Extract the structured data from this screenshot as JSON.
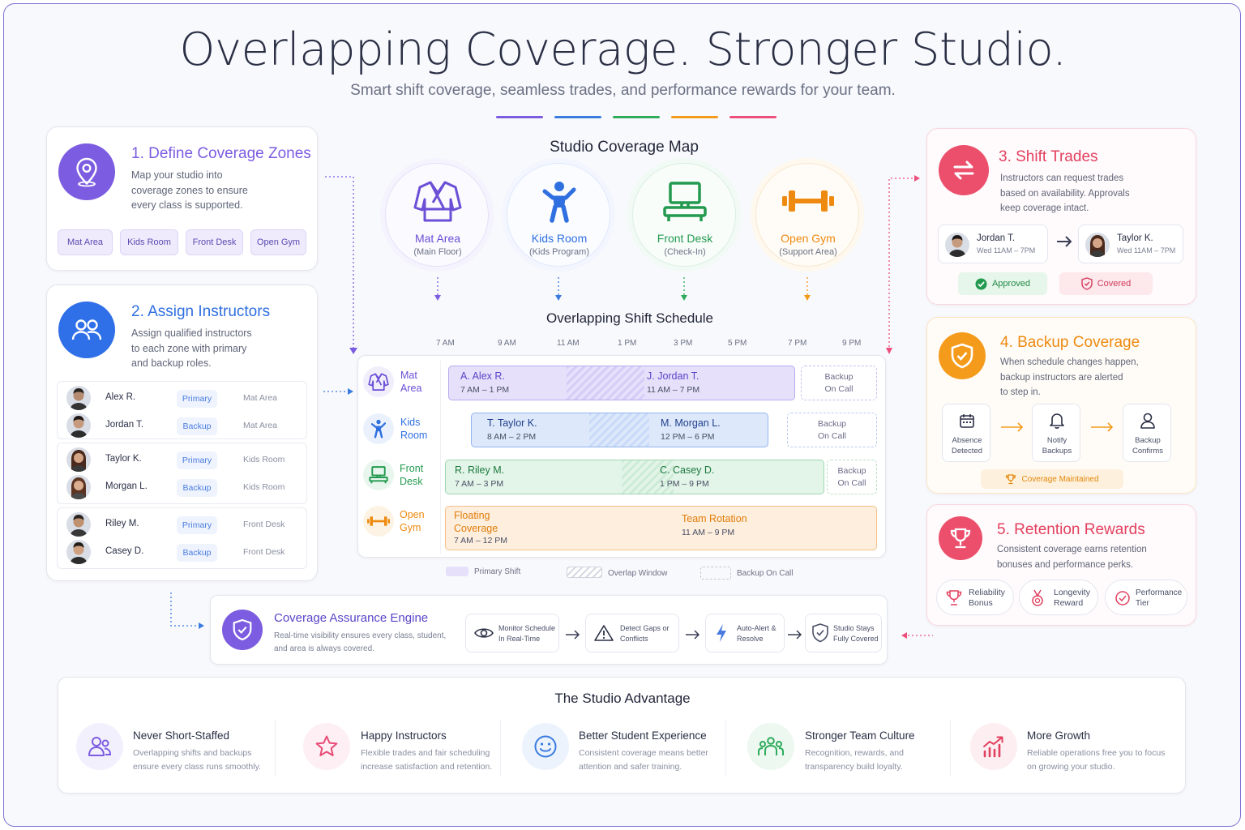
{
  "title": "Overlapping Coverage. Stronger Studio.",
  "subtitle": "Smart shift coverage, seamless trades, and performance rewards for your team.",
  "accent_colors": [
    "#7c5ce0",
    "#3a7be0",
    "#2eab5b",
    "#f59b1c",
    "#ec4f7c"
  ],
  "card1": {
    "heading": "1. Define Coverage Zones",
    "body": [
      "Map your studio into",
      "coverage zones to ensure",
      "every class is supported."
    ],
    "icon": "location-pin-icon",
    "zones": [
      "Mat Area",
      "Kids Room",
      "Front Desk",
      "Open Gym"
    ]
  },
  "card2": {
    "heading": "2.  Assign Instructors",
    "body": [
      "Assign qualified instructors",
      "to each zone with primary",
      "and backup roles."
    ],
    "icon": "people-icon",
    "rows": [
      {
        "name": "Alex R.",
        "role": "Primary",
        "zone": "Mat Area"
      },
      {
        "name": "Jordan T.",
        "role": "Backup",
        "zone": "Mat Area"
      },
      {
        "name": "Taylor K.",
        "role": "Primary",
        "zone": "Kids Room"
      },
      {
        "name": "Morgan L.",
        "role": "Backup",
        "zone": "Kids Room"
      },
      {
        "name": "Riley M.",
        "role": "Primary",
        "zone": "Front Desk"
      },
      {
        "name": "Casey D.",
        "role": "Backup",
        "zone": "Front Desk"
      }
    ]
  },
  "map": {
    "heading": "Studio Coverage Map",
    "zones": [
      {
        "name": "Mat Area",
        "sub": "(Main Floor)",
        "icon": "gi-uniform-icon",
        "color": "#6b4fd6"
      },
      {
        "name": "Kids Room",
        "sub": "(Kids Program)",
        "icon": "child-icon",
        "color": "#2f6fe0"
      },
      {
        "name": "Front Desk",
        "sub": "(Check-In)",
        "icon": "desk-computer-icon",
        "color": "#229a4f"
      },
      {
        "name": "Open Gym",
        "sub": "(Support Area)",
        "icon": "dumbbell-icon",
        "color": "#ee8a10"
      }
    ]
  },
  "schedule": {
    "heading": "Overlapping Shift Schedule",
    "ticks": [
      "7 AM",
      "9 AM",
      "11 AM",
      "1 PM",
      "3 PM",
      "5 PM",
      "7 PM",
      "9 PM"
    ],
    "rows": [
      {
        "zone_l1": "Mat",
        "zone_l2": "Area",
        "shifts": [
          {
            "name": "A. Alex R.",
            "time": "7 AM – 1 PM"
          },
          {
            "name": "J. Jordan T.",
            "time": "11 AM – 7 PM"
          }
        ],
        "backup_l1": "Backup",
        "backup_l2": "On Call"
      },
      {
        "zone_l1": "Kids",
        "zone_l2": "Room",
        "shifts": [
          {
            "name": "T. Taylor K.",
            "time": "8 AM – 2 PM"
          },
          {
            "name": "M. Morgan L.",
            "time": "12 PM – 6 PM"
          }
        ],
        "backup_l1": "Backup",
        "backup_l2": "On Call"
      },
      {
        "zone_l1": "Front",
        "zone_l2": "Desk",
        "shifts": [
          {
            "name": "R. Riley M.",
            "time": "7 AM – 3 PM"
          },
          {
            "name": "C. Casey D.",
            "time": "1 PM – 9 PM"
          }
        ],
        "backup_l1": "Backup",
        "backup_l2": "On Call"
      },
      {
        "zone_l1": "Open",
        "zone_l2": "Gym",
        "shifts": [
          {
            "name_l1": "Floating",
            "name_l2": "Coverage",
            "time": "7 AM – 12 PM"
          },
          {
            "name": "Team Rotation",
            "time": "11 AM – 9 PM"
          }
        ]
      }
    ],
    "legend": [
      "Primary Shift",
      "Overlap Window",
      "Backup On Call"
    ]
  },
  "card3": {
    "heading": "3.  Shift Trades",
    "body": [
      "Instructors can request trades",
      "based on availability. Approvals",
      "keep coverage intact."
    ],
    "icon": "swap-arrows-icon",
    "from": {
      "name": "Jordan T.",
      "time": "Wed 11AM – 7PM"
    },
    "to": {
      "name": "Taylor K.",
      "time": "Wed 11AM – 7PM"
    },
    "approved": "Approved",
    "covered": "Covered"
  },
  "card4": {
    "heading": "4.  Backup Coverage",
    "body": [
      "When schedule changes happen,",
      "backup instructors are alerted",
      "to step in."
    ],
    "icon": "shield-check-icon",
    "steps": [
      {
        "l1": "Absence",
        "l2": "Detected",
        "icon": "calendar-icon"
      },
      {
        "l1": "Notify",
        "l2": "Backups",
        "icon": "bell-icon"
      },
      {
        "l1": "Backup",
        "l2": "Confirms",
        "icon": "user-icon"
      }
    ],
    "result": "Coverage Maintained"
  },
  "card5": {
    "heading": "5.  Retention Rewards",
    "body": [
      "Consistent coverage earns retention",
      "bonuses and performance perks."
    ],
    "icon": "trophy-icon",
    "rewards": [
      {
        "l1": "Reliability",
        "l2": "Bonus"
      },
      {
        "l1": "Longevity",
        "l2": "Reward"
      },
      {
        "l1": "Performance",
        "l2": "Tier"
      }
    ]
  },
  "engine": {
    "heading": "Coverage Assurance Engine",
    "body": [
      "Real-time visibility ensures every class, student,",
      "and area is always covered."
    ],
    "steps": [
      {
        "l1": "Monitor Schedule",
        "l2": "In Real-Time",
        "icon": "eye-icon"
      },
      {
        "l1": "Detect Gaps or",
        "l2": "Conflicts",
        "icon": "warning-icon"
      },
      {
        "l1": "Auto-Alert &",
        "l2": "Resolve",
        "icon": "lightning-icon"
      },
      {
        "l1": "Studio Stays",
        "l2": "Fully Covered",
        "icon": "shield-check-icon"
      }
    ]
  },
  "advantage": {
    "heading": "The Studio Advantage",
    "items": [
      {
        "title": "Never Short-Staffed",
        "l1": "Overlapping shifts and backups",
        "l2": "ensure every class runs smoothly.",
        "icon": "team-icon",
        "color": "#7c5ce0"
      },
      {
        "title": "Happy Instructors",
        "l1": "Flexible trades and fair scheduling",
        "l2": "increase satisfaction and retention.",
        "icon": "star-icon",
        "color": "#e84a76"
      },
      {
        "title": "Better Student Experience",
        "l1": "Consistent coverage means better",
        "l2": "attention and safer training.",
        "icon": "smile-icon",
        "color": "#3a7be0"
      },
      {
        "title": "Stronger Team Culture",
        "l1": "Recognition, rewards, and",
        "l2": "transparency build loyalty.",
        "icon": "group-icon",
        "color": "#2eab5b"
      },
      {
        "title": "More Growth",
        "l1": "Reliable operations free you to focus",
        "l2": "on growing your studio.",
        "icon": "growth-chart-icon",
        "color": "#e2405f"
      }
    ]
  }
}
